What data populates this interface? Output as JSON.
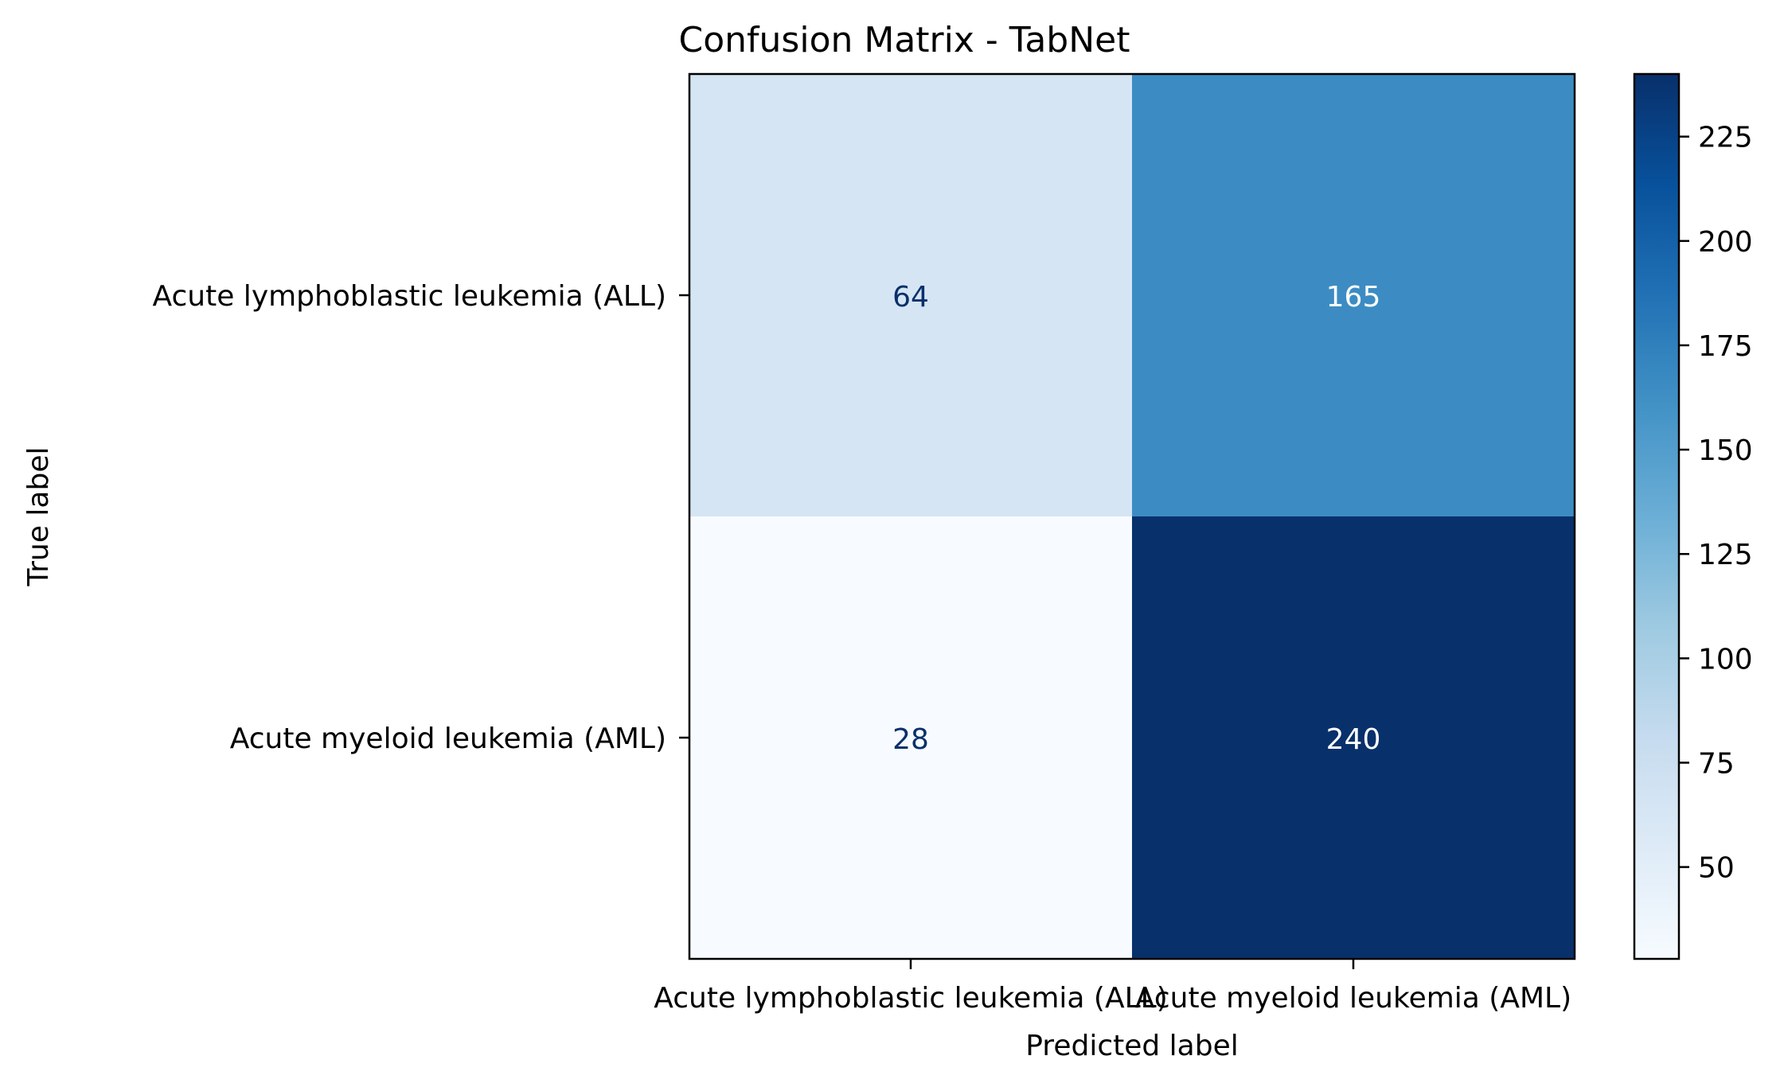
{
  "chart_data": {
    "type": "heatmap",
    "title": "Confusion Matrix - TabNet",
    "xlabel": "Predicted label",
    "ylabel": "True label",
    "x_categories": [
      "Acute lymphoblastic leukemia (ALL)",
      "Acute myeloid leukemia (AML)"
    ],
    "y_categories": [
      "Acute lymphoblastic leukemia (ALL)",
      "Acute myeloid leukemia (AML)"
    ],
    "matrix": [
      [
        64,
        165
      ],
      [
        28,
        240
      ]
    ],
    "colormap": "Blues",
    "value_range": [
      28,
      240
    ],
    "colorbar_ticks": [
      50,
      75,
      100,
      125,
      150,
      175,
      200,
      225
    ],
    "grid": false
  },
  "colors": {
    "text_on_dark": "#ffffff",
    "text_on_light": "#08306b",
    "axis": "#000000"
  }
}
